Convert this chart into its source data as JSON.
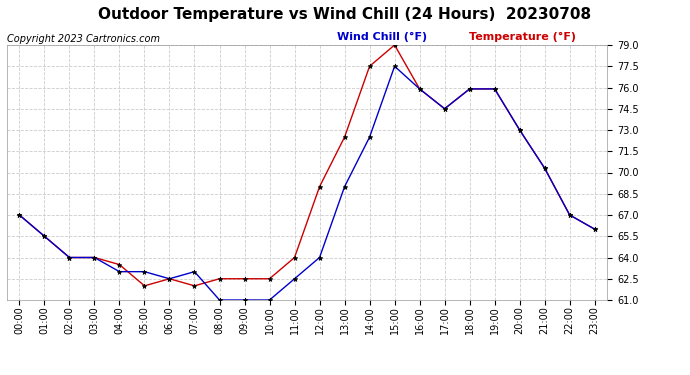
{
  "title": "Outdoor Temperature vs Wind Chill (24 Hours)  20230708",
  "copyright": "Copyright 2023 Cartronics.com",
  "legend_blue": "Wind Chill (°F)",
  "legend_red": "Temperature (°F)",
  "hours": [
    "00:00",
    "01:00",
    "02:00",
    "03:00",
    "04:00",
    "05:00",
    "06:00",
    "07:00",
    "08:00",
    "09:00",
    "10:00",
    "11:00",
    "12:00",
    "13:00",
    "14:00",
    "15:00",
    "16:00",
    "17:00",
    "18:00",
    "19:00",
    "20:00",
    "21:00",
    "22:00",
    "23:00"
  ],
  "temperature": [
    67.0,
    65.5,
    64.0,
    64.0,
    63.5,
    62.0,
    62.5,
    62.0,
    62.5,
    62.5,
    62.5,
    64.0,
    69.0,
    72.5,
    77.5,
    79.0,
    75.9,
    74.5,
    75.9,
    75.9,
    73.0,
    70.3,
    67.0,
    66.0
  ],
  "wind_chill": [
    67.0,
    65.5,
    64.0,
    64.0,
    63.0,
    63.0,
    62.5,
    63.0,
    61.0,
    61.0,
    61.0,
    62.5,
    64.0,
    69.0,
    72.5,
    77.5,
    75.9,
    74.5,
    75.9,
    75.9,
    73.0,
    70.3,
    67.0,
    66.0
  ],
  "ylim": [
    61.0,
    79.0
  ],
  "yticks": [
    61.0,
    62.5,
    64.0,
    65.5,
    67.0,
    68.5,
    70.0,
    71.5,
    73.0,
    74.5,
    76.0,
    77.5,
    79.0
  ],
  "temp_color": "#cc0000",
  "wind_color": "#0000cc",
  "bg_color": "#ffffff",
  "grid_color": "#cccccc",
  "title_fontsize": 11,
  "copyright_fontsize": 7,
  "legend_fontsize": 8,
  "tick_fontsize": 7
}
